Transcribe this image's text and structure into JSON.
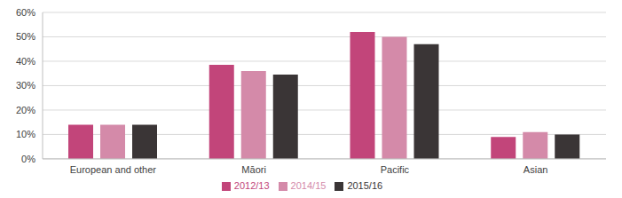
{
  "chart_data": {
    "type": "bar",
    "categories": [
      "European and other",
      "Māori",
      "Pacific",
      "Asian"
    ],
    "series": [
      {
        "name": "2012/13",
        "color": "#c2457a",
        "values": [
          14,
          38.5,
          52,
          9
        ]
      },
      {
        "name": "2014/15",
        "color": "#d48aa9",
        "values": [
          14,
          36,
          50,
          11
        ]
      },
      {
        "name": "2015/16",
        "color": "#3a3536",
        "values": [
          14,
          34.5,
          47,
          10
        ]
      }
    ],
    "ylim": [
      0,
      60
    ],
    "yticks": [
      {
        "value": 0,
        "label": "0%"
      },
      {
        "value": 10,
        "label": "10%"
      },
      {
        "value": 20,
        "label": "20%"
      },
      {
        "value": 30,
        "label": "30%"
      },
      {
        "value": 40,
        "label": "40%"
      },
      {
        "value": 50,
        "label": "50%"
      },
      {
        "value": 60,
        "label": "60%"
      }
    ],
    "grid": true,
    "legend": "bottom"
  }
}
